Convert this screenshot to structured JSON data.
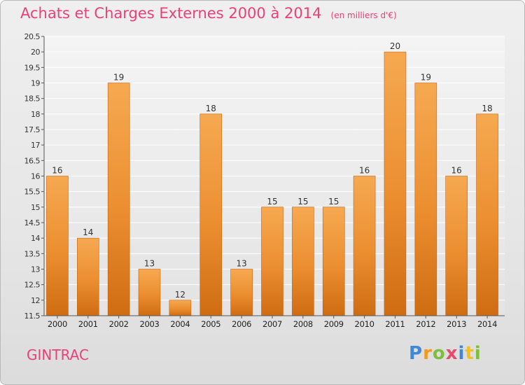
{
  "header": {
    "title": "Achats et Charges Externes 2000 à 2014",
    "unit": "(en milliers d'€)"
  },
  "commune": "GINTRAC",
  "logo": {
    "text": "Proxiti"
  },
  "colors": {
    "bar_light": "#f5a64a",
    "bar_dark": "#d06e12",
    "title": "#e8417a"
  },
  "chart_data": {
    "type": "bar",
    "title": "Achats et Charges Externes 2000 à 2014",
    "subtitle": "(en milliers d'€)",
    "xlabel": "",
    "ylabel": "",
    "categories": [
      "2000",
      "2001",
      "2002",
      "2003",
      "2004",
      "2005",
      "2006",
      "2007",
      "2008",
      "2009",
      "2010",
      "2011",
      "2012",
      "2013",
      "2014"
    ],
    "values": [
      16,
      14,
      19,
      13,
      12,
      18,
      13,
      15,
      15,
      15,
      16,
      20,
      19,
      16,
      18
    ],
    "data_labels": [
      "16",
      "14",
      "19",
      "13",
      "12",
      "18",
      "13",
      "15",
      "15",
      "15",
      "16",
      "20",
      "19",
      "16",
      "18"
    ],
    "ylim": [
      11.5,
      20.5
    ],
    "yticks": [
      11.5,
      12,
      12.5,
      13,
      13.5,
      14,
      14.5,
      15,
      15.5,
      16,
      16.5,
      17,
      17.5,
      18,
      18.5,
      19,
      19.5,
      20,
      20.5
    ],
    "ytick_labels": [
      "11.5",
      "12",
      "12.5",
      "13",
      "13.5",
      "14",
      "14.5",
      "15",
      "15.5",
      "16",
      "16.5",
      "17",
      "17.5",
      "18",
      "18.5",
      "19",
      "19.5",
      "20",
      "20.5"
    ],
    "grid": true
  }
}
